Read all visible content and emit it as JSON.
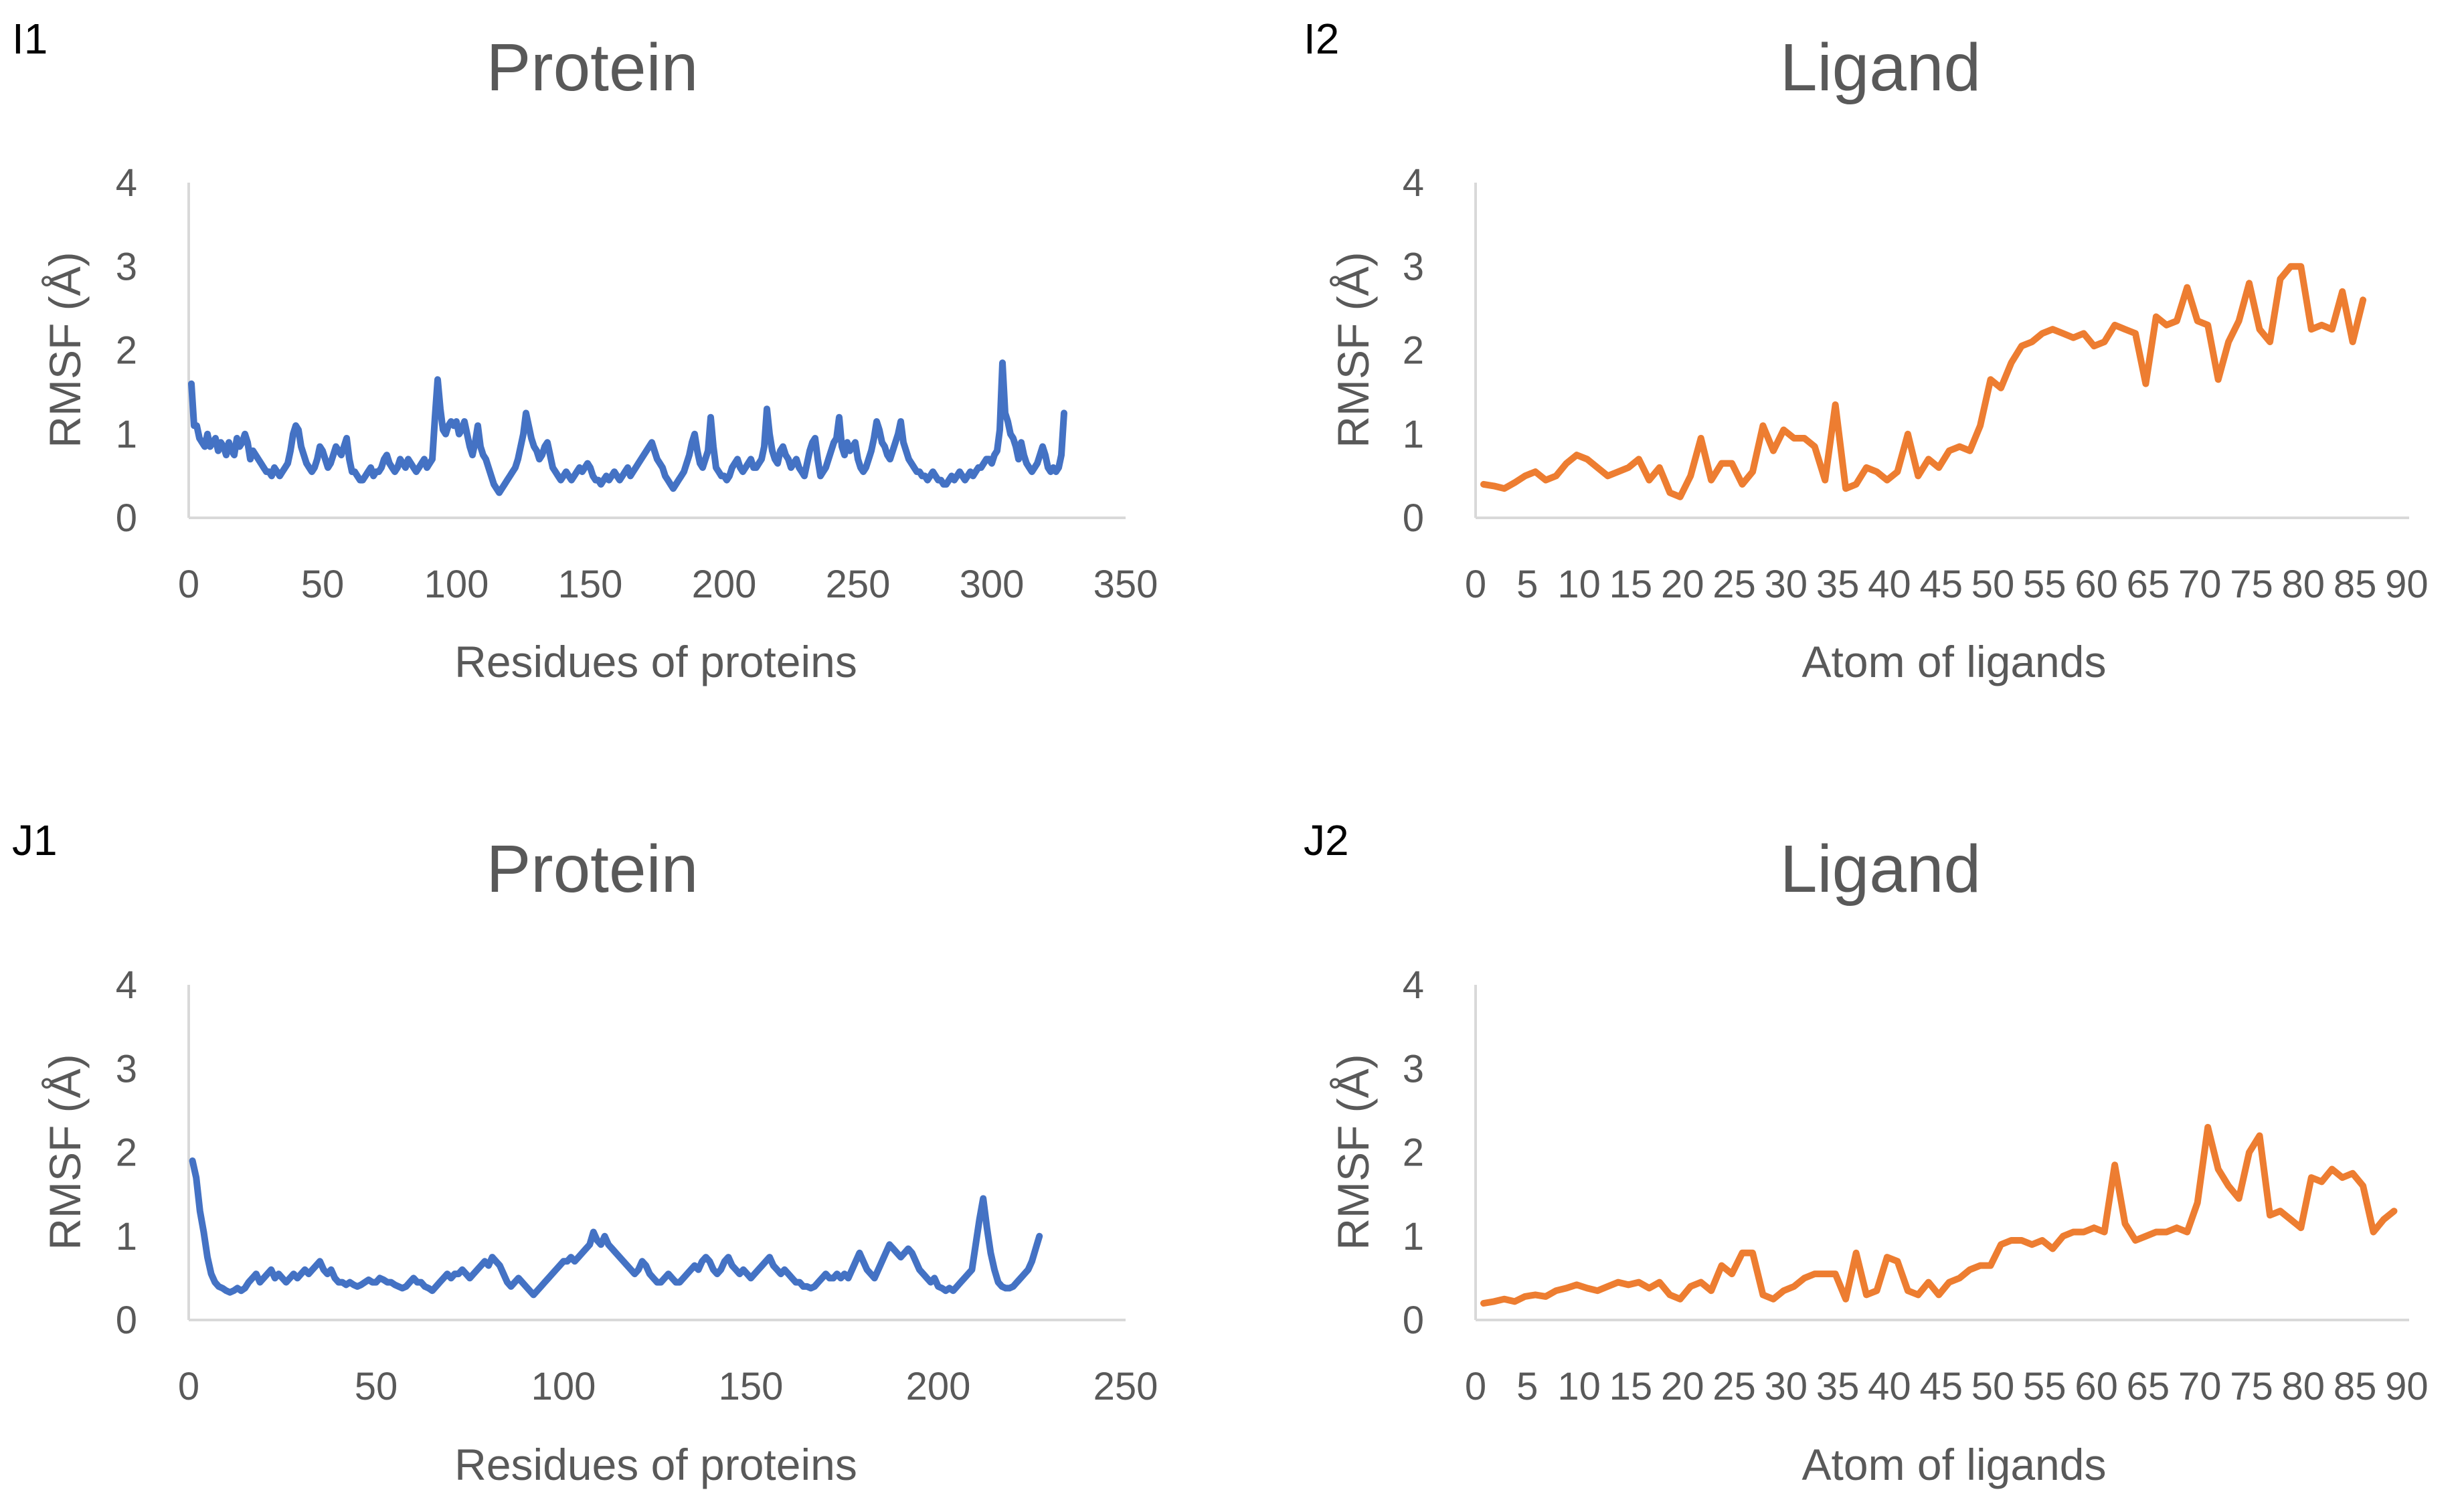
{
  "chart_data": [
    {
      "panel": "I1",
      "type": "line",
      "title": "Protein",
      "xlabel": "Residues of proteins",
      "ylabel": "RMSF (Å)",
      "xlim": [
        0,
        350
      ],
      "ylim": [
        0,
        4
      ],
      "x_ticks": [
        0,
        50,
        100,
        150,
        200,
        250,
        300,
        350
      ],
      "y_ticks": [
        0,
        1,
        2,
        3,
        4
      ],
      "grid": false,
      "legend": "none",
      "color": "#4472c4",
      "series": [
        {
          "name": "Protein",
          "values": [
            1.6,
            1.1,
            1.1,
            0.95,
            0.9,
            0.85,
            1.0,
            0.85,
            0.9,
            0.95,
            0.8,
            0.9,
            0.85,
            0.75,
            0.9,
            0.8,
            0.75,
            0.95,
            0.85,
            0.9,
            1.0,
            0.9,
            0.7,
            0.8,
            0.75,
            0.7,
            0.65,
            0.6,
            0.55,
            0.55,
            0.5,
            0.6,
            0.55,
            0.5,
            0.55,
            0.6,
            0.65,
            0.8,
            1.0,
            1.1,
            1.05,
            0.85,
            0.75,
            0.65,
            0.6,
            0.55,
            0.6,
            0.7,
            0.85,
            0.8,
            0.7,
            0.6,
            0.65,
            0.75,
            0.85,
            0.8,
            0.75,
            0.85,
            0.95,
            0.7,
            0.55,
            0.55,
            0.5,
            0.45,
            0.45,
            0.5,
            0.55,
            0.6,
            0.5,
            0.55,
            0.55,
            0.6,
            0.7,
            0.75,
            0.65,
            0.6,
            0.55,
            0.6,
            0.7,
            0.65,
            0.6,
            0.7,
            0.65,
            0.6,
            0.55,
            0.6,
            0.65,
            0.7,
            0.6,
            0.65,
            0.7,
            1.2,
            1.65,
            1.3,
            1.05,
            1.0,
            1.1,
            1.15,
            1.1,
            1.15,
            1.0,
            1.05,
            1.15,
            1.0,
            0.85,
            0.75,
            0.9,
            1.1,
            0.85,
            0.75,
            0.7,
            0.6,
            0.5,
            0.4,
            0.35,
            0.3,
            0.35,
            0.4,
            0.45,
            0.5,
            0.55,
            0.6,
            0.7,
            0.85,
            1.0,
            1.25,
            1.1,
            0.95,
            0.85,
            0.8,
            0.7,
            0.75,
            0.85,
            0.9,
            0.75,
            0.6,
            0.55,
            0.5,
            0.45,
            0.5,
            0.55,
            0.5,
            0.45,
            0.5,
            0.55,
            0.6,
            0.55,
            0.6,
            0.65,
            0.6,
            0.5,
            0.45,
            0.45,
            0.4,
            0.45,
            0.5,
            0.45,
            0.5,
            0.55,
            0.5,
            0.45,
            0.5,
            0.55,
            0.6,
            0.5,
            0.55,
            0.6,
            0.65,
            0.7,
            0.75,
            0.8,
            0.85,
            0.9,
            0.8,
            0.7,
            0.65,
            0.6,
            0.5,
            0.45,
            0.4,
            0.35,
            0.4,
            0.45,
            0.5,
            0.55,
            0.65,
            0.75,
            0.9,
            1.0,
            0.8,
            0.65,
            0.6,
            0.7,
            0.8,
            1.2,
            0.85,
            0.6,
            0.55,
            0.5,
            0.5,
            0.45,
            0.5,
            0.6,
            0.65,
            0.7,
            0.6,
            0.55,
            0.6,
            0.65,
            0.7,
            0.6,
            0.6,
            0.65,
            0.7,
            0.85,
            1.3,
            1.0,
            0.8,
            0.7,
            0.65,
            0.8,
            0.85,
            0.75,
            0.7,
            0.6,
            0.65,
            0.7,
            0.6,
            0.55,
            0.5,
            0.65,
            0.8,
            0.9,
            0.95,
            0.7,
            0.5,
            0.55,
            0.6,
            0.7,
            0.8,
            0.9,
            0.95,
            1.2,
            0.85,
            0.75,
            0.9,
            0.8,
            0.85,
            0.9,
            0.7,
            0.6,
            0.55,
            0.6,
            0.7,
            0.8,
            0.95,
            1.15,
            1.05,
            0.9,
            0.85,
            0.75,
            0.7,
            0.8,
            0.9,
            1.0,
            1.15,
            0.9,
            0.8,
            0.7,
            0.65,
            0.6,
            0.55,
            0.55,
            0.5,
            0.5,
            0.45,
            0.5,
            0.55,
            0.5,
            0.45,
            0.45,
            0.4,
            0.4,
            0.45,
            0.5,
            0.45,
            0.5,
            0.55,
            0.5,
            0.45,
            0.5,
            0.55,
            0.5,
            0.55,
            0.6,
            0.6,
            0.65,
            0.7,
            0.7,
            0.65,
            0.75,
            0.8,
            1.05,
            1.85,
            1.25,
            1.15,
            1.0,
            0.95,
            0.85,
            0.7,
            0.9,
            0.75,
            0.65,
            0.6,
            0.55,
            0.6,
            0.65,
            0.75,
            0.85,
            0.75,
            0.6,
            0.55,
            0.6,
            0.55,
            0.6,
            0.75,
            1.25
          ]
        }
      ]
    },
    {
      "panel": "I2",
      "type": "line",
      "title": "Ligand",
      "xlabel": "Atom of ligands",
      "ylabel": "RMSF (Å)",
      "ylim": [
        0,
        4
      ],
      "x_tick_labels": [
        "0",
        "5",
        "10",
        "15",
        "20",
        "25",
        "30",
        "35",
        "40",
        "45",
        "50",
        "55",
        "60",
        "65",
        "70",
        "75",
        "80",
        "85",
        "90"
      ],
      "y_ticks": [
        0,
        1,
        2,
        3,
        4
      ],
      "grid": false,
      "legend": "none",
      "color": "#ed7d31",
      "series": [
        {
          "name": "Ligand",
          "values": [
            0.4,
            0.38,
            0.35,
            0.42,
            0.5,
            0.55,
            0.45,
            0.5,
            0.65,
            0.75,
            0.7,
            0.6,
            0.5,
            0.55,
            0.6,
            0.7,
            0.45,
            0.6,
            0.3,
            0.25,
            0.5,
            0.95,
            0.45,
            0.65,
            0.65,
            0.4,
            0.55,
            1.1,
            0.8,
            1.05,
            0.95,
            0.95,
            0.85,
            0.45,
            1.35,
            0.35,
            0.4,
            0.6,
            0.55,
            0.45,
            0.55,
            1.0,
            0.5,
            0.7,
            0.6,
            0.8,
            0.85,
            0.8,
            1.1,
            1.65,
            1.55,
            1.85,
            2.05,
            2.1,
            2.2,
            2.25,
            2.2,
            2.15,
            2.2,
            2.05,
            2.1,
            2.3,
            2.25,
            2.2,
            1.6,
            2.4,
            2.3,
            2.35,
            2.75,
            2.35,
            2.3,
            1.65,
            2.1,
            2.35,
            2.8,
            2.25,
            2.1,
            2.85,
            3.0,
            3.0,
            2.25,
            2.3,
            2.25,
            2.7,
            2.1,
            2.6
          ]
        }
      ]
    },
    {
      "panel": "J1",
      "type": "line",
      "title": "Protein",
      "xlabel": "Residues of proteins",
      "ylabel": "RMSF (Å)",
      "xlim": [
        0,
        250
      ],
      "ylim": [
        0,
        4
      ],
      "x_ticks": [
        0,
        50,
        100,
        150,
        200,
        250
      ],
      "y_ticks": [
        0,
        1,
        2,
        3,
        4
      ],
      "grid": false,
      "legend": "none",
      "color": "#4472c4",
      "series": [
        {
          "name": "Protein",
          "values": [
            1.9,
            1.7,
            1.3,
            1.05,
            0.75,
            0.55,
            0.45,
            0.4,
            0.38,
            0.35,
            0.33,
            0.35,
            0.38,
            0.35,
            0.38,
            0.45,
            0.5,
            0.55,
            0.45,
            0.5,
            0.55,
            0.6,
            0.5,
            0.55,
            0.5,
            0.45,
            0.5,
            0.55,
            0.5,
            0.55,
            0.6,
            0.55,
            0.6,
            0.65,
            0.7,
            0.6,
            0.55,
            0.6,
            0.5,
            0.45,
            0.45,
            0.42,
            0.45,
            0.42,
            0.4,
            0.42,
            0.45,
            0.48,
            0.45,
            0.45,
            0.5,
            0.48,
            0.45,
            0.45,
            0.42,
            0.4,
            0.38,
            0.4,
            0.45,
            0.5,
            0.45,
            0.45,
            0.4,
            0.38,
            0.35,
            0.4,
            0.45,
            0.5,
            0.55,
            0.5,
            0.55,
            0.55,
            0.6,
            0.55,
            0.5,
            0.55,
            0.6,
            0.65,
            0.7,
            0.65,
            0.75,
            0.7,
            0.65,
            0.55,
            0.45,
            0.4,
            0.45,
            0.5,
            0.45,
            0.4,
            0.35,
            0.3,
            0.35,
            0.4,
            0.45,
            0.5,
            0.55,
            0.6,
            0.65,
            0.7,
            0.7,
            0.75,
            0.7,
            0.75,
            0.8,
            0.85,
            0.9,
            1.05,
            0.95,
            0.9,
            1.0,
            0.9,
            0.85,
            0.8,
            0.75,
            0.7,
            0.65,
            0.6,
            0.55,
            0.6,
            0.7,
            0.65,
            0.55,
            0.5,
            0.45,
            0.45,
            0.5,
            0.55,
            0.5,
            0.45,
            0.45,
            0.5,
            0.55,
            0.6,
            0.65,
            0.6,
            0.7,
            0.75,
            0.7,
            0.6,
            0.55,
            0.6,
            0.7,
            0.75,
            0.65,
            0.6,
            0.55,
            0.6,
            0.55,
            0.5,
            0.55,
            0.6,
            0.65,
            0.7,
            0.75,
            0.65,
            0.6,
            0.55,
            0.6,
            0.55,
            0.5,
            0.45,
            0.45,
            0.4,
            0.4,
            0.38,
            0.4,
            0.45,
            0.5,
            0.55,
            0.5,
            0.5,
            0.55,
            0.5,
            0.55,
            0.5,
            0.6,
            0.7,
            0.8,
            0.7,
            0.6,
            0.55,
            0.5,
            0.6,
            0.7,
            0.8,
            0.9,
            0.85,
            0.8,
            0.75,
            0.8,
            0.85,
            0.8,
            0.7,
            0.6,
            0.55,
            0.5,
            0.45,
            0.5,
            0.4,
            0.38,
            0.35,
            0.38,
            0.35,
            0.4,
            0.45,
            0.5,
            0.55,
            0.6,
            0.9,
            1.2,
            1.45,
            1.1,
            0.8,
            0.6,
            0.45,
            0.4,
            0.38,
            0.38,
            0.4,
            0.45,
            0.5,
            0.55,
            0.6,
            0.7,
            0.85,
            1.0
          ]
        }
      ]
    },
    {
      "panel": "J2",
      "type": "line",
      "title": "Ligand",
      "xlabel": "Atom of ligands",
      "ylabel": "RMSF (Å)",
      "ylim": [
        0,
        4
      ],
      "x_tick_labels": [
        "0",
        "5",
        "10",
        "15",
        "20",
        "25",
        "30",
        "35",
        "40",
        "45",
        "50",
        "55",
        "60",
        "65",
        "70",
        "75",
        "80",
        "85",
        "90"
      ],
      "y_ticks": [
        0,
        1,
        2,
        3,
        4
      ],
      "grid": false,
      "legend": "none",
      "color": "#ed7d31",
      "series": [
        {
          "name": "Ligand",
          "values": [
            0.2,
            0.22,
            0.25,
            0.22,
            0.28,
            0.3,
            0.28,
            0.35,
            0.38,
            0.42,
            0.38,
            0.35,
            0.4,
            0.45,
            0.42,
            0.45,
            0.38,
            0.45,
            0.3,
            0.25,
            0.4,
            0.45,
            0.35,
            0.65,
            0.55,
            0.8,
            0.8,
            0.3,
            0.25,
            0.35,
            0.4,
            0.5,
            0.55,
            0.55,
            0.55,
            0.25,
            0.8,
            0.3,
            0.35,
            0.75,
            0.7,
            0.35,
            0.3,
            0.45,
            0.3,
            0.45,
            0.5,
            0.6,
            0.65,
            0.65,
            0.9,
            0.95,
            0.95,
            0.9,
            0.95,
            0.85,
            1.0,
            1.05,
            1.05,
            1.1,
            1.05,
            1.85,
            1.15,
            0.95,
            1.0,
            1.05,
            1.05,
            1.1,
            1.05,
            1.4,
            2.3,
            1.8,
            1.6,
            1.45,
            2.0,
            2.2,
            1.25,
            1.3,
            1.2,
            1.1,
            1.7,
            1.65,
            1.8,
            1.7,
            1.75,
            1.6,
            1.05,
            1.2,
            1.3
          ]
        }
      ]
    }
  ]
}
